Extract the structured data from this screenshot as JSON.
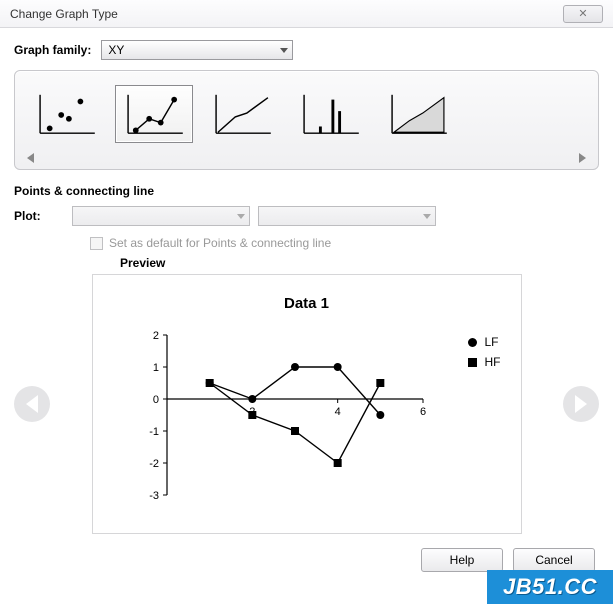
{
  "window": {
    "title": "Change Graph Type",
    "close_glyph": "✕"
  },
  "graph_family": {
    "label": "Graph family:",
    "value": "XY"
  },
  "gallery": {
    "selected_index": 1,
    "thumbs": [
      {
        "type": "scatter-only"
      },
      {
        "type": "scatter-line"
      },
      {
        "type": "line-only"
      },
      {
        "type": "column-spikes"
      },
      {
        "type": "area"
      }
    ]
  },
  "subsection": {
    "title": "Points & connecting line",
    "plot_label": "Plot:",
    "plot1_value": "",
    "plot2_value": "",
    "set_default_label": "Set as default for Points & connecting line",
    "set_default_checked": false
  },
  "preview": {
    "label": "Preview",
    "chart": {
      "title": "Data 1",
      "title_fontsize": 15,
      "background_color": "#ffffff",
      "axis_color": "#000000",
      "marker_color": "#000000",
      "line_color": "#000000",
      "x": {
        "min": 0,
        "max": 6,
        "ticks": [
          2,
          4,
          6
        ]
      },
      "y": {
        "min": -3,
        "max": 2,
        "ticks": [
          -3,
          -2,
          -1,
          0,
          1,
          2
        ]
      },
      "series": [
        {
          "name": "LF",
          "marker": "circle",
          "points": [
            [
              1,
              0.5
            ],
            [
              2,
              0
            ],
            [
              3,
              1
            ],
            [
              4,
              1
            ],
            [
              5,
              -0.5
            ]
          ]
        },
        {
          "name": "HF",
          "marker": "square",
          "points": [
            [
              1,
              0.5
            ],
            [
              2,
              -0.5
            ],
            [
              3,
              -1
            ],
            [
              4,
              -2
            ],
            [
              5,
              0.5
            ]
          ]
        }
      ]
    }
  },
  "buttons": {
    "help": "Help",
    "cancel": "Cancel"
  },
  "watermark": "JB51.CC"
}
